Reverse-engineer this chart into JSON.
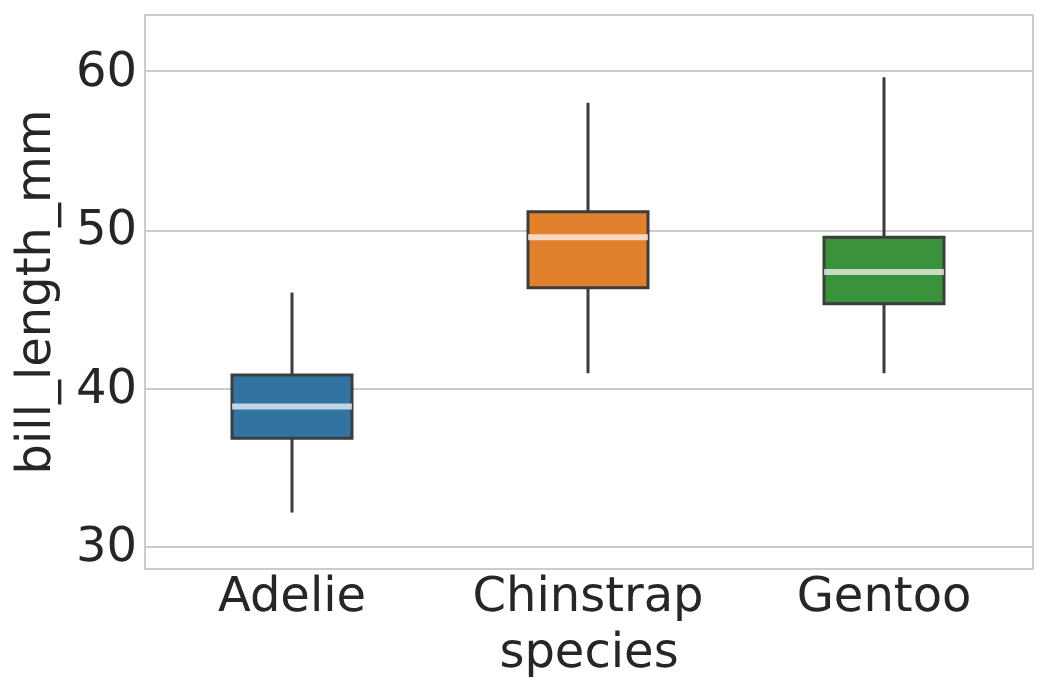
{
  "chart_data": {
    "type": "box",
    "xlabel": "species",
    "ylabel": "bill_length_mm",
    "categories": [
      "Adelie",
      "Chinstrap",
      "Gentoo"
    ],
    "colors": [
      "#3274a1",
      "#e1812c",
      "#3a923a"
    ],
    "boxes": [
      {
        "low": 32.1,
        "q1": 36.8,
        "median": 38.8,
        "q3": 40.8,
        "high": 46.0
      },
      {
        "low": 40.9,
        "q1": 46.3,
        "median": 49.5,
        "q3": 51.1,
        "high": 58.0
      },
      {
        "low": 40.9,
        "q1": 45.3,
        "median": 47.3,
        "q3": 49.5,
        "high": 59.6
      }
    ],
    "ylim": [
      28.6,
      63.6
    ],
    "yticks": [
      30,
      40,
      50,
      60
    ],
    "grid": "y"
  }
}
